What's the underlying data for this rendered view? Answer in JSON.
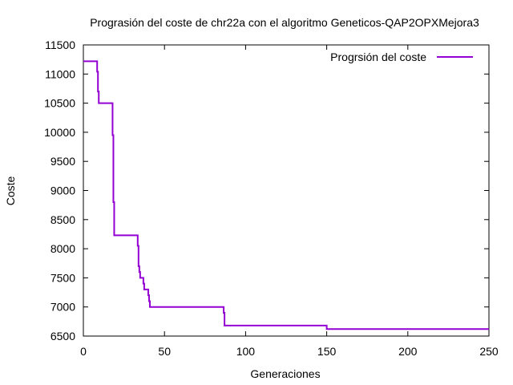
{
  "chart_data": {
    "type": "line",
    "title": "Prograsión del coste de chr22a con el algoritmo Geneticos-QAP2OPXMejora3",
    "xlabel": "Generaciones",
    "ylabel": "Coste",
    "xlim": [
      0,
      250
    ],
    "ylim": [
      6500,
      11500
    ],
    "xticks": [
      "0",
      "50",
      "100",
      "150",
      "200",
      "250"
    ],
    "yticks": [
      "6500",
      "7000",
      "7500",
      "8000",
      "8500",
      "9000",
      "9500",
      "10000",
      "10500",
      "11000",
      "11500"
    ],
    "grid": false,
    "legend": "top-right",
    "series": [
      {
        "name": "Progrsión del coste",
        "color": "#9400d3",
        "step": true,
        "x": [
          0,
          8.5,
          9,
          9.5,
          10,
          18,
          18.5,
          19,
          33,
          33.5,
          34,
          34.5,
          35,
          37,
          37.5,
          40,
          40.5,
          41,
          86,
          86.5,
          87,
          149,
          150,
          250
        ],
        "y": [
          11220,
          11040,
          10700,
          10500,
          10500,
          9950,
          8800,
          8230,
          8230,
          8050,
          7700,
          7600,
          7500,
          7400,
          7300,
          7200,
          7100,
          7000,
          7000,
          6900,
          6680,
          6680,
          6620,
          6620
        ]
      }
    ]
  }
}
